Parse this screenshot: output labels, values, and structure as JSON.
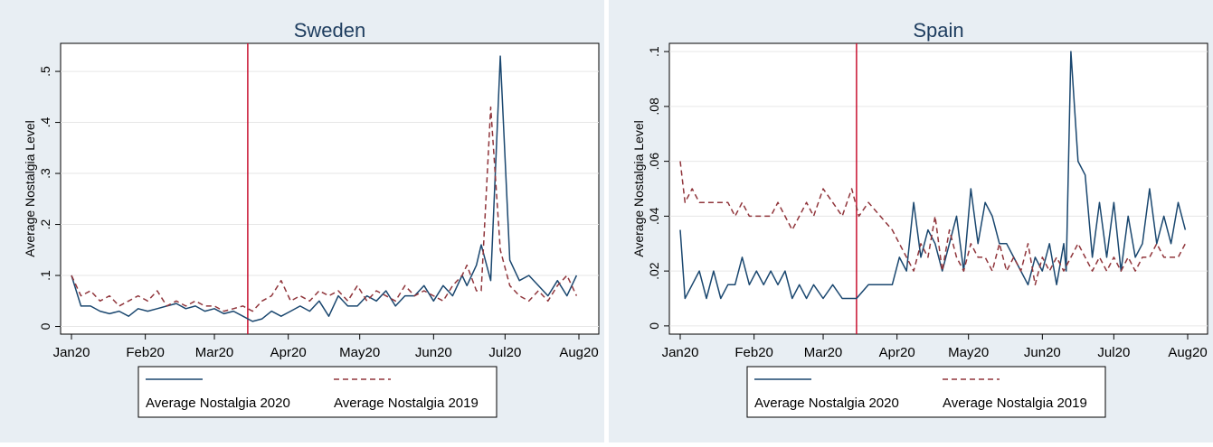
{
  "chart_data": [
    {
      "type": "line",
      "title": "Sweden",
      "xlabel": "",
      "ylabel": "Average Nostalgia Level",
      "x_tick_labels": [
        "Jan20",
        "Feb20",
        "Mar20",
        "Apr20",
        "May20",
        "Jun20",
        "Jul20",
        "Aug20"
      ],
      "y_ticks": [
        0,
        0.1,
        0.2,
        0.3,
        0.4,
        0.5
      ],
      "y_tick_labels": [
        "0",
        ".1",
        ".2",
        ".3",
        ".4",
        ".5"
      ],
      "ylim": [
        -0.015,
        0.555
      ],
      "xlim": [
        "2020-01-01",
        "2020-08-01"
      ],
      "vline": "2020-03-15",
      "grid": true,
      "legend_position": "bottom",
      "series": [
        {
          "name": "Average Nostalgia 2020",
          "color": "#1a476f",
          "dash": "solid",
          "x": [
            "2020-01-01",
            "2020-01-05",
            "2020-01-09",
            "2020-01-13",
            "2020-01-17",
            "2020-01-21",
            "2020-01-25",
            "2020-01-29",
            "2020-02-02",
            "2020-02-06",
            "2020-02-10",
            "2020-02-14",
            "2020-02-18",
            "2020-02-22",
            "2020-02-26",
            "2020-03-01",
            "2020-03-05",
            "2020-03-09",
            "2020-03-13",
            "2020-03-17",
            "2020-03-21",
            "2020-03-25",
            "2020-03-29",
            "2020-04-02",
            "2020-04-06",
            "2020-04-10",
            "2020-04-14",
            "2020-04-18",
            "2020-04-22",
            "2020-04-26",
            "2020-04-30",
            "2020-05-04",
            "2020-05-08",
            "2020-05-12",
            "2020-05-16",
            "2020-05-20",
            "2020-05-24",
            "2020-05-28",
            "2020-06-01",
            "2020-06-05",
            "2020-06-09",
            "2020-06-13",
            "2020-06-15",
            "2020-06-19",
            "2020-06-21",
            "2020-06-25",
            "2020-06-29",
            "2020-07-03",
            "2020-07-07",
            "2020-07-11",
            "2020-07-15",
            "2020-07-19",
            "2020-07-23",
            "2020-07-27",
            "2020-07-31"
          ],
          "y": [
            0.1,
            0.04,
            0.04,
            0.03,
            0.025,
            0.03,
            0.02,
            0.035,
            0.03,
            0.035,
            0.04,
            0.045,
            0.035,
            0.04,
            0.03,
            0.035,
            0.025,
            0.03,
            0.02,
            0.01,
            0.015,
            0.03,
            0.02,
            0.03,
            0.04,
            0.03,
            0.05,
            0.02,
            0.06,
            0.04,
            0.04,
            0.06,
            0.05,
            0.07,
            0.04,
            0.06,
            0.06,
            0.08,
            0.05,
            0.08,
            0.06,
            0.1,
            0.08,
            0.12,
            0.16,
            0.09,
            0.53,
            0.13,
            0.09,
            0.1,
            0.08,
            0.06,
            0.09,
            0.06,
            0.1
          ]
        },
        {
          "name": "Average Nostalgia 2019",
          "color": "#90353b",
          "dash": "dashed",
          "x": [
            "2020-01-01",
            "2020-01-05",
            "2020-01-09",
            "2020-01-13",
            "2020-01-17",
            "2020-01-21",
            "2020-01-25",
            "2020-01-29",
            "2020-02-02",
            "2020-02-06",
            "2020-02-10",
            "2020-02-14",
            "2020-02-18",
            "2020-02-22",
            "2020-02-26",
            "2020-03-01",
            "2020-03-05",
            "2020-03-09",
            "2020-03-13",
            "2020-03-17",
            "2020-03-21",
            "2020-03-25",
            "2020-03-29",
            "2020-04-02",
            "2020-04-06",
            "2020-04-10",
            "2020-04-14",
            "2020-04-18",
            "2020-04-22",
            "2020-04-26",
            "2020-04-30",
            "2020-05-04",
            "2020-05-08",
            "2020-05-12",
            "2020-05-16",
            "2020-05-20",
            "2020-05-24",
            "2020-05-28",
            "2020-06-01",
            "2020-06-05",
            "2020-06-09",
            "2020-06-13",
            "2020-06-15",
            "2020-06-19",
            "2020-06-21",
            "2020-06-25",
            "2020-06-29",
            "2020-07-03",
            "2020-07-07",
            "2020-07-11",
            "2020-07-15",
            "2020-07-19",
            "2020-07-23",
            "2020-07-27",
            "2020-07-31"
          ],
          "y": [
            0.1,
            0.06,
            0.07,
            0.05,
            0.06,
            0.04,
            0.05,
            0.06,
            0.05,
            0.07,
            0.04,
            0.05,
            0.04,
            0.05,
            0.04,
            0.04,
            0.03,
            0.035,
            0.04,
            0.03,
            0.05,
            0.06,
            0.09,
            0.05,
            0.06,
            0.05,
            0.07,
            0.06,
            0.07,
            0.05,
            0.08,
            0.05,
            0.07,
            0.06,
            0.05,
            0.08,
            0.06,
            0.07,
            0.06,
            0.05,
            0.08,
            0.1,
            0.12,
            0.07,
            0.07,
            0.43,
            0.15,
            0.08,
            0.06,
            0.05,
            0.07,
            0.05,
            0.08,
            0.1,
            0.06
          ]
        }
      ]
    },
    {
      "type": "line",
      "title": "Spain",
      "xlabel": "",
      "ylabel": "Average Nostalgia Level",
      "x_tick_labels": [
        "Jan20",
        "Feb20",
        "Mar20",
        "Apr20",
        "May20",
        "Jun20",
        "Jul20",
        "Aug20"
      ],
      "y_ticks": [
        0,
        0.02,
        0.04,
        0.06,
        0.08,
        0.1
      ],
      "y_tick_labels": [
        "0",
        ".02",
        ".04",
        ".06",
        ".08",
        ".1"
      ],
      "ylim": [
        -0.003,
        0.103
      ],
      "xlim": [
        "2020-01-01",
        "2020-08-01"
      ],
      "vline": "2020-03-15",
      "grid": true,
      "legend_position": "bottom",
      "series": [
        {
          "name": "Average Nostalgia 2020",
          "color": "#1a476f",
          "dash": "solid",
          "x": [
            "2020-01-01",
            "2020-01-03",
            "2020-01-06",
            "2020-01-09",
            "2020-01-12",
            "2020-01-15",
            "2020-01-18",
            "2020-01-21",
            "2020-01-24",
            "2020-01-27",
            "2020-01-30",
            "2020-02-02",
            "2020-02-05",
            "2020-02-08",
            "2020-02-11",
            "2020-02-14",
            "2020-02-17",
            "2020-02-20",
            "2020-02-23",
            "2020-02-26",
            "2020-03-01",
            "2020-03-05",
            "2020-03-09",
            "2020-03-13",
            "2020-03-15",
            "2020-03-20",
            "2020-03-25",
            "2020-03-30",
            "2020-04-02",
            "2020-04-05",
            "2020-04-08",
            "2020-04-11",
            "2020-04-14",
            "2020-04-17",
            "2020-04-20",
            "2020-04-23",
            "2020-04-26",
            "2020-04-29",
            "2020-05-02",
            "2020-05-05",
            "2020-05-08",
            "2020-05-11",
            "2020-05-14",
            "2020-05-17",
            "2020-05-20",
            "2020-05-23",
            "2020-05-26",
            "2020-05-29",
            "2020-06-01",
            "2020-06-04",
            "2020-06-07",
            "2020-06-10",
            "2020-06-11",
            "2020-06-13",
            "2020-06-16",
            "2020-06-19",
            "2020-06-22",
            "2020-06-25",
            "2020-06-28",
            "2020-07-01",
            "2020-07-04",
            "2020-07-07",
            "2020-07-10",
            "2020-07-13",
            "2020-07-16",
            "2020-07-19",
            "2020-07-22",
            "2020-07-25",
            "2020-07-28",
            "2020-07-31"
          ],
          "y": [
            0.035,
            0.01,
            0.015,
            0.02,
            0.01,
            0.02,
            0.01,
            0.015,
            0.015,
            0.025,
            0.015,
            0.02,
            0.015,
            0.02,
            0.015,
            0.02,
            0.01,
            0.015,
            0.01,
            0.015,
            0.01,
            0.015,
            0.01,
            0.01,
            0.01,
            0.015,
            0.015,
            0.015,
            0.025,
            0.02,
            0.045,
            0.025,
            0.035,
            0.03,
            0.02,
            0.03,
            0.04,
            0.02,
            0.05,
            0.03,
            0.045,
            0.04,
            0.03,
            0.03,
            0.025,
            0.02,
            0.015,
            0.025,
            0.02,
            0.03,
            0.015,
            0.03,
            0.02,
            0.1,
            0.06,
            0.055,
            0.025,
            0.045,
            0.025,
            0.045,
            0.02,
            0.04,
            0.025,
            0.03,
            0.05,
            0.03,
            0.04,
            0.03,
            0.045,
            0.035
          ]
        },
        {
          "name": "Average Nostalgia 2019",
          "color": "#90353b",
          "dash": "dashed",
          "x": [
            "2020-01-01",
            "2020-01-03",
            "2020-01-06",
            "2020-01-09",
            "2020-01-12",
            "2020-01-15",
            "2020-01-18",
            "2020-01-21",
            "2020-01-24",
            "2020-01-27",
            "2020-01-30",
            "2020-02-02",
            "2020-02-05",
            "2020-02-08",
            "2020-02-11",
            "2020-02-14",
            "2020-02-17",
            "2020-02-20",
            "2020-02-23",
            "2020-02-26",
            "2020-03-01",
            "2020-03-05",
            "2020-03-09",
            "2020-03-13",
            "2020-03-16",
            "2020-03-20",
            "2020-03-25",
            "2020-03-30",
            "2020-04-02",
            "2020-04-05",
            "2020-04-08",
            "2020-04-11",
            "2020-04-14",
            "2020-04-17",
            "2020-04-20",
            "2020-04-23",
            "2020-04-26",
            "2020-04-29",
            "2020-05-02",
            "2020-05-05",
            "2020-05-08",
            "2020-05-11",
            "2020-05-14",
            "2020-05-17",
            "2020-05-20",
            "2020-05-23",
            "2020-05-26",
            "2020-05-29",
            "2020-06-01",
            "2020-06-04",
            "2020-06-07",
            "2020-06-10",
            "2020-06-13",
            "2020-06-16",
            "2020-06-19",
            "2020-06-22",
            "2020-06-25",
            "2020-06-28",
            "2020-07-01",
            "2020-07-04",
            "2020-07-07",
            "2020-07-10",
            "2020-07-13",
            "2020-07-16",
            "2020-07-19",
            "2020-07-22",
            "2020-07-25",
            "2020-07-28",
            "2020-07-31"
          ],
          "y": [
            0.06,
            0.045,
            0.05,
            0.045,
            0.045,
            0.045,
            0.045,
            0.045,
            0.04,
            0.045,
            0.04,
            0.04,
            0.04,
            0.04,
            0.045,
            0.04,
            0.035,
            0.04,
            0.045,
            0.04,
            0.05,
            0.045,
            0.04,
            0.05,
            0.04,
            0.045,
            0.04,
            0.035,
            0.03,
            0.025,
            0.02,
            0.03,
            0.025,
            0.04,
            0.02,
            0.035,
            0.025,
            0.02,
            0.03,
            0.025,
            0.025,
            0.02,
            0.03,
            0.02,
            0.025,
            0.02,
            0.03,
            0.015,
            0.025,
            0.02,
            0.025,
            0.02,
            0.025,
            0.03,
            0.025,
            0.02,
            0.025,
            0.02,
            0.025,
            0.02,
            0.025,
            0.02,
            0.025,
            0.025,
            0.03,
            0.025,
            0.025,
            0.025,
            0.03
          ]
        }
      ]
    }
  ]
}
